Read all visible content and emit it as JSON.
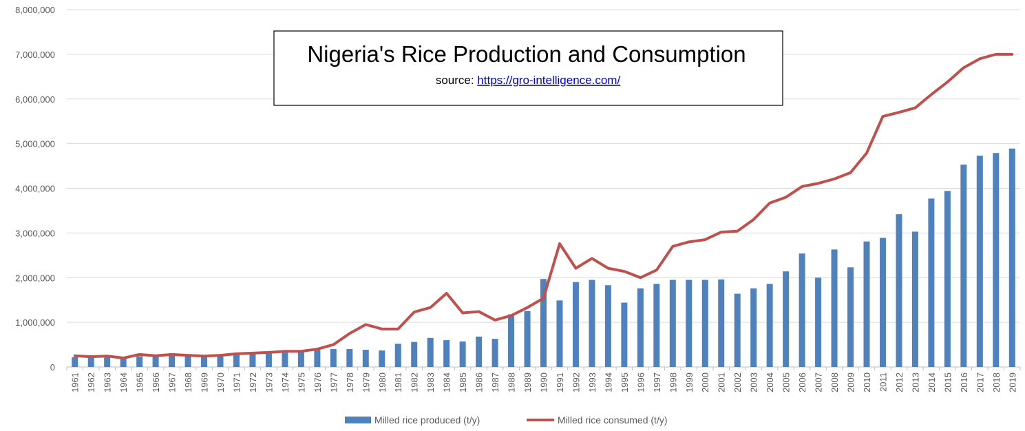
{
  "chart_data": {
    "type": "bar",
    "title": "Nigeria's Rice Production and Consumption",
    "subtitle_prefix": "source: ",
    "subtitle_link": "https://gro-intelligence.com/",
    "ylim": [
      0,
      8000000
    ],
    "y_ticks": [
      "0",
      "1,000,000",
      "2,000,000",
      "3,000,000",
      "4,000,000",
      "5,000,000",
      "6,000,000",
      "7,000,000",
      "8,000,000"
    ],
    "y_tick_values": [
      0,
      1000000,
      2000000,
      3000000,
      4000000,
      5000000,
      6000000,
      7000000,
      8000000
    ],
    "grid": true,
    "legend_position": "bottom",
    "categories": [
      "1961",
      "1962",
      "1963",
      "1964",
      "1965",
      "1966",
      "1967",
      "1968",
      "1969",
      "1970",
      "1971",
      "1972",
      "1973",
      "1974",
      "1975",
      "1976",
      "1977",
      "1978",
      "1979",
      "1980",
      "1981",
      "1982",
      "1983",
      "1984",
      "1985",
      "1986",
      "1987",
      "1988",
      "1989",
      "1990",
      "1991",
      "1992",
      "1993",
      "1994",
      "1995",
      "1996",
      "1997",
      "1998",
      "1999",
      "2000",
      "2001",
      "2002",
      "2003",
      "2004",
      "2005",
      "2006",
      "2007",
      "2008",
      "2009",
      "2010",
      "2011",
      "2012",
      "2013",
      "2014",
      "2015",
      "2016",
      "2017",
      "2018",
      "2019"
    ],
    "series": [
      {
        "name": "Milled rice produced (t/y)",
        "kind": "bar",
        "color": "#4f81bd",
        "values": [
          220000,
          210000,
          215000,
          200000,
          240000,
          235000,
          250000,
          250000,
          240000,
          245000,
          270000,
          290000,
          300000,
          320000,
          330000,
          380000,
          400000,
          400000,
          385000,
          370000,
          520000,
          560000,
          650000,
          600000,
          570000,
          680000,
          630000,
          1180000,
          1250000,
          1970000,
          1490000,
          1900000,
          1950000,
          1830000,
          1440000,
          1760000,
          1860000,
          1950000,
          1950000,
          1950000,
          1960000,
          1640000,
          1760000,
          1860000,
          2140000,
          2540000,
          2000000,
          2630000,
          2230000,
          2810000,
          2890000,
          3420000,
          3030000,
          3770000,
          3940000,
          4530000,
          4730000,
          4790000,
          4890000
        ]
      },
      {
        "name": "Milled rice consumed (t/y)",
        "kind": "line",
        "color": "#c0504d",
        "values": [
          250000,
          230000,
          245000,
          200000,
          280000,
          250000,
          280000,
          260000,
          245000,
          260000,
          295000,
          310000,
          325000,
          350000,
          350000,
          400000,
          500000,
          750000,
          950000,
          850000,
          850000,
          1230000,
          1330000,
          1650000,
          1210000,
          1240000,
          1050000,
          1150000,
          1330000,
          1540000,
          2760000,
          2210000,
          2430000,
          2210000,
          2140000,
          2000000,
          2170000,
          2700000,
          2800000,
          2850000,
          3020000,
          3040000,
          3300000,
          3670000,
          3800000,
          4040000,
          4110000,
          4210000,
          4350000,
          4790000,
          5610000,
          5700000,
          5800000,
          6100000,
          6380000,
          6700000,
          6900000,
          7000000,
          7000000
        ]
      }
    ]
  },
  "colors": {
    "bar": "#4f81bd",
    "line": "#c0504d",
    "grid": "#d9d9d9",
    "axis": "#bfbfbf",
    "tick_text": "#595959"
  }
}
